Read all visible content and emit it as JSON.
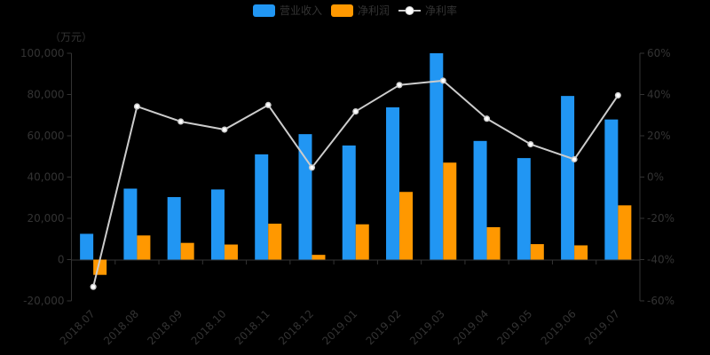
{
  "chart_data": {
    "type": "combo",
    "title": "",
    "categories": [
      "2018.07",
      "2018.08",
      "2018.09",
      "2018.10",
      "2018.11",
      "2018.12",
      "2019.01",
      "2019.02",
      "2019.03",
      "2019.04",
      "2019.05",
      "2019.06",
      "2019.07"
    ],
    "series": [
      {
        "name": "营业收入",
        "type": "bar",
        "axis": "left",
        "color": "#2196f3",
        "values": [
          12500,
          34400,
          30300,
          34000,
          51000,
          60800,
          55300,
          73800,
          100000,
          57500,
          49200,
          79300,
          67900
        ]
      },
      {
        "name": "净利润",
        "type": "bar",
        "axis": "left",
        "color": "#ff9800",
        "values": [
          -7400,
          11700,
          8100,
          7300,
          17400,
          2300,
          17100,
          32800,
          47000,
          15700,
          7500,
          6900,
          26300
        ]
      },
      {
        "name": "净利率",
        "type": "line",
        "axis": "right",
        "color": "#cccccc",
        "marker_fill": "#ffffff",
        "values": [
          -53.2,
          34.2,
          26.9,
          23.0,
          34.9,
          4.6,
          31.8,
          44.6,
          46.7,
          28.3,
          15.9,
          8.6,
          39.6
        ]
      }
    ],
    "legend": {
      "position": "top-center",
      "items": [
        "营业收入",
        "净利润",
        "净利率"
      ]
    },
    "y_axis_left": {
      "name": "（万元）",
      "min": -20000,
      "max": 100000,
      "interval": 20000,
      "tick_labels": [
        "100,000",
        "80,000",
        "60,000",
        "40,000",
        "20,000",
        "0",
        "-20,000"
      ]
    },
    "y_axis_right": {
      "name": "",
      "min": -60,
      "max": 60,
      "interval": 20,
      "unit": "%",
      "tick_labels": [
        "60%",
        "40%",
        "20%",
        "0%",
        "-20%",
        "-40%",
        "-60%"
      ]
    },
    "x_axis": {
      "label_rotate_deg": 45
    },
    "grid_lines": false,
    "colors": {
      "background": "#000000",
      "axis": "#333333",
      "text": "#333333"
    }
  }
}
